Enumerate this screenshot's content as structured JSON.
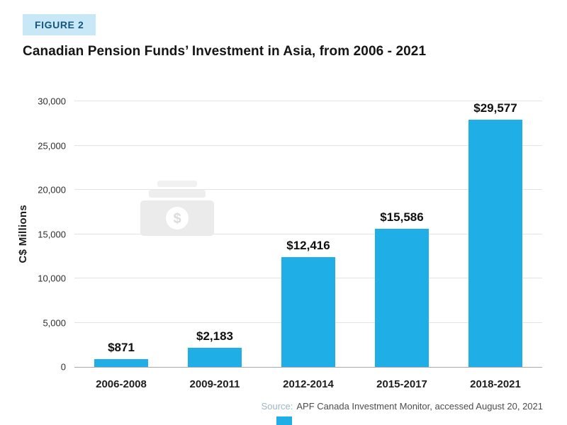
{
  "figure_label": "FIGURE 2",
  "title": "Canadian Pension Funds’ Investment in Asia, from 2006 - 2021",
  "source": {
    "label": "Source:",
    "text": "APF Canada Investment Monitor, accessed August 20, 2021"
  },
  "colors": {
    "bar": "#1fafe6",
    "badge_bg": "#c9e8f7",
    "badge_text": "#15557f",
    "gridline": "#e3e3e3",
    "watermark": "#ececec",
    "accent": "#1fafe6"
  },
  "icons": {
    "watermark": "money-bill-icon"
  },
  "chart_data": {
    "type": "bar",
    "title": "Canadian Pension Funds’ Investment in Asia, from 2006 - 2021",
    "categories": [
      "2006-2008",
      "2009-2011",
      "2012-2014",
      "2015-2017",
      "2018-2021"
    ],
    "values": [
      871,
      2183,
      12416,
      15586,
      29577
    ],
    "value_labels": [
      "$871",
      "$2,183",
      "$12,416",
      "$15,586",
      "$29,577"
    ],
    "xlabel": "",
    "ylabel": "C$ Millions",
    "ylim": [
      0,
      30000
    ],
    "yticks": [
      0,
      5000,
      10000,
      15000,
      20000,
      25000,
      30000
    ],
    "ytick_labels": [
      "0",
      "5,000",
      "10,000",
      "15,000",
      "20,000",
      "25,000",
      "30,000"
    ],
    "grid": true,
    "legend": false,
    "bar_color": "#1fafe6"
  }
}
